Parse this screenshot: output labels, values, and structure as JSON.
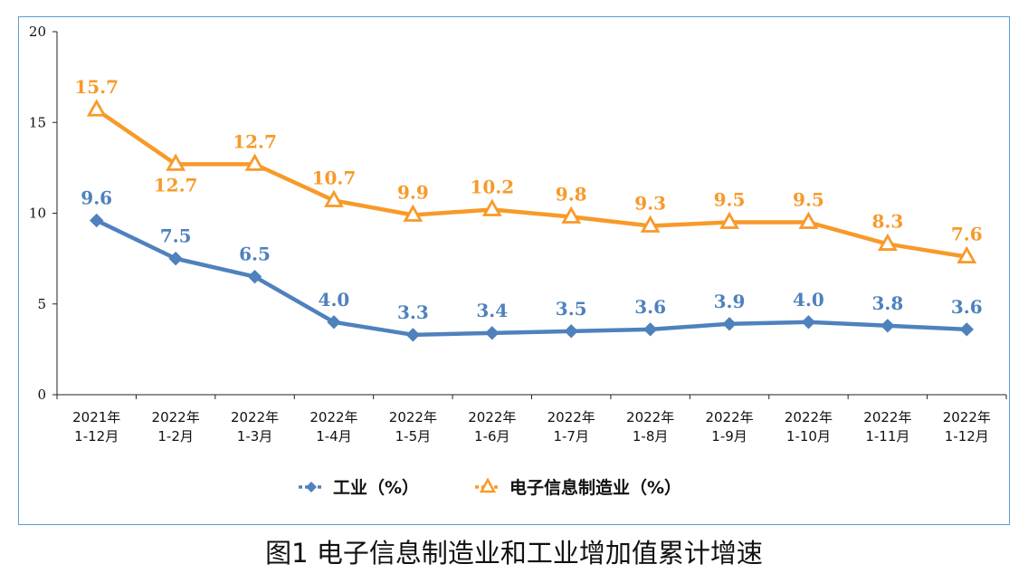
{
  "caption": "图1 电子信息制造业和工业增加值累计增速",
  "colors": {
    "series_0": "#4f81bd",
    "series_1": "#f79a2a",
    "frame": "#5b9bd5"
  },
  "chart_data": {
    "type": "line",
    "title": "",
    "xlabel": "",
    "ylabel": "",
    "ylim": [
      0,
      20
    ],
    "yticks": [
      "0",
      "5",
      "10",
      "15",
      "20"
    ],
    "grid": false,
    "legend_position": "bottom",
    "categories": [
      [
        "2021年",
        "1-12月"
      ],
      [
        "2022年",
        "1-2月"
      ],
      [
        "2022年",
        "1-3月"
      ],
      [
        "2022年",
        "1-4月"
      ],
      [
        "2022年",
        "1-5月"
      ],
      [
        "2022年",
        "1-6月"
      ],
      [
        "2022年",
        "1-7月"
      ],
      [
        "2022年",
        "1-8月"
      ],
      [
        "2022年",
        "1-9月"
      ],
      [
        "2022年",
        "1-10月"
      ],
      [
        "2022年",
        "1-11月"
      ],
      [
        "2022年",
        "1-12月"
      ]
    ],
    "series": [
      {
        "name": "工业（%）",
        "marker": "diamond",
        "values": [
          9.6,
          7.5,
          6.5,
          4.0,
          3.3,
          3.4,
          3.5,
          3.6,
          3.9,
          4.0,
          3.8,
          3.6
        ],
        "labels": [
          "9.6",
          "7.5",
          "6.5",
          "4.0",
          "3.3",
          "3.4",
          "3.5",
          "3.6",
          "3.9",
          "4.0",
          "3.8",
          "3.6"
        ]
      },
      {
        "name": "电子信息制造业（%）",
        "marker": "triangle",
        "values": [
          15.7,
          12.7,
          12.7,
          10.7,
          9.9,
          10.2,
          9.8,
          9.3,
          9.5,
          9.5,
          8.3,
          7.6
        ],
        "labels": [
          "15.7",
          "12.7",
          "12.7",
          "10.7",
          "9.9",
          "10.2",
          "9.8",
          "9.3",
          "9.5",
          "9.5",
          "8.3",
          "7.6"
        ]
      }
    ]
  }
}
